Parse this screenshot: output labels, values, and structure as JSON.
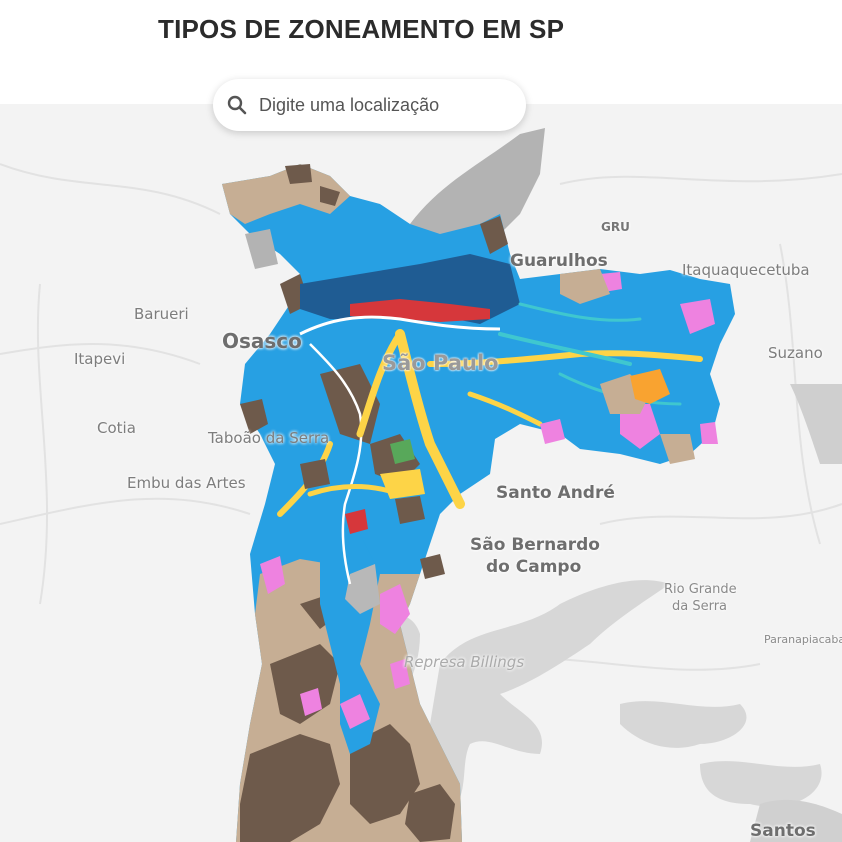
{
  "header": {
    "title": "TIPOS DE ZONEAMENTO EM SP"
  },
  "search": {
    "placeholder": "Digite uma localização",
    "value": ""
  },
  "map": {
    "places": [
      {
        "id": "guarulhos",
        "label": "Guarulhos"
      },
      {
        "id": "gru",
        "label": "GRU"
      },
      {
        "id": "itaquaquecetuba",
        "label": "Itaquaquecetuba"
      },
      {
        "id": "barueri",
        "label": "Barueri"
      },
      {
        "id": "osasco",
        "label": "Osasco"
      },
      {
        "id": "sao-paulo",
        "label": "São Paulo"
      },
      {
        "id": "suzano",
        "label": "Suzano"
      },
      {
        "id": "itapevi",
        "label": "Itapevi"
      },
      {
        "id": "cotia",
        "label": "Cotia"
      },
      {
        "id": "taboao",
        "label": "Taboão da Serra"
      },
      {
        "id": "embu",
        "label": "Embu das Artes"
      },
      {
        "id": "santo-andre",
        "label": "Santo André"
      },
      {
        "id": "sbc-1",
        "label": "São Bernardo"
      },
      {
        "id": "sbc-2",
        "label": "do Campo"
      },
      {
        "id": "rio-grande-1",
        "label": "Rio Grande"
      },
      {
        "id": "rio-grande-2",
        "label": "da Serra"
      },
      {
        "id": "paranapiacaba",
        "label": "Paranapiacaba"
      },
      {
        "id": "billings",
        "label": "Represa Billings"
      },
      {
        "id": "santos",
        "label": "Santos"
      }
    ],
    "colors": {
      "background": "#f3f3f3",
      "water": "#d6d6d6",
      "mixed_blue": "#27a0e3",
      "axis_yellow": "#fdd447",
      "special_pink": "#ee82e0",
      "rural_tan": "#c6ae94",
      "protection_brown": "#6e5a4b",
      "industrial_navy": "#1f5c93",
      "corridor_cyan": "#3fc7cf",
      "commercial_red": "#d6373b",
      "park_green": "#58a85a",
      "gray_area": "#b3b3b3",
      "orange": "#f9a330"
    }
  }
}
